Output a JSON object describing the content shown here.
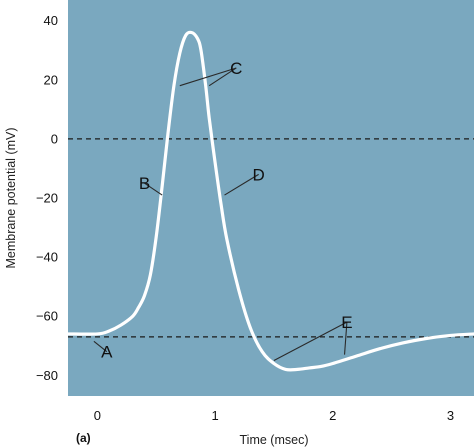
{
  "chart_data": {
    "type": "line",
    "title": "",
    "panel_label": "(a)",
    "xlabel": "Time (msec)",
    "ylabel": "Membrane potential (mV)",
    "xlim": [
      -0.25,
      3.2
    ],
    "ylim": [
      -87,
      47
    ],
    "xticks": [
      0,
      1,
      2,
      3
    ],
    "yticks": [
      40,
      20,
      0,
      -20,
      -40,
      -60,
      -80
    ],
    "grid": false,
    "background_color": "#7aa8bf",
    "line_color": "#ffffff",
    "reference_lines": [
      {
        "y": 0,
        "style": "dashed"
      },
      {
        "y": -67,
        "style": "dashed"
      }
    ],
    "series": [
      {
        "x": [
          -0.25,
          0.0,
          0.1,
          0.2,
          0.3,
          0.35,
          0.4,
          0.45,
          0.5,
          0.55,
          0.6,
          0.65,
          0.7,
          0.75,
          0.8,
          0.85,
          0.88,
          0.92,
          0.95,
          1.0,
          1.05,
          1.1,
          1.2,
          1.3,
          1.4,
          1.5,
          1.6,
          1.7,
          1.8,
          1.9,
          2.0,
          2.2,
          2.4,
          2.6,
          2.8,
          3.0,
          3.2
        ],
        "y": [
          -66,
          -66,
          -65,
          -63,
          -60,
          -57,
          -53,
          -46,
          -33,
          -16,
          2,
          18,
          29,
          35,
          36,
          34,
          30,
          18,
          7,
          -8,
          -22,
          -34,
          -51,
          -64,
          -72,
          -76,
          -78,
          -78,
          -77.5,
          -77,
          -76,
          -73.5,
          -71,
          -69,
          -67.5,
          -66.5,
          -66
        ]
      }
    ],
    "annotations": [
      {
        "label": "A",
        "x": 0.08,
        "y": -72,
        "pointer": [
          [
            -0.03,
            -68.5
          ]
        ]
      },
      {
        "label": "B",
        "x": 0.4,
        "y": -15,
        "pointer": [
          [
            0.55,
            -19
          ]
        ]
      },
      {
        "label": "C",
        "x": 1.18,
        "y": 24,
        "pointer": [
          [
            0.7,
            18
          ],
          [
            0.95,
            18
          ]
        ]
      },
      {
        "label": "D",
        "x": 1.37,
        "y": -12,
        "pointer": [
          [
            1.08,
            -19
          ]
        ]
      },
      {
        "label": "E",
        "x": 2.12,
        "y": -62,
        "pointer": [
          [
            1.5,
            -75
          ],
          [
            2.1,
            -73
          ]
        ]
      }
    ]
  }
}
